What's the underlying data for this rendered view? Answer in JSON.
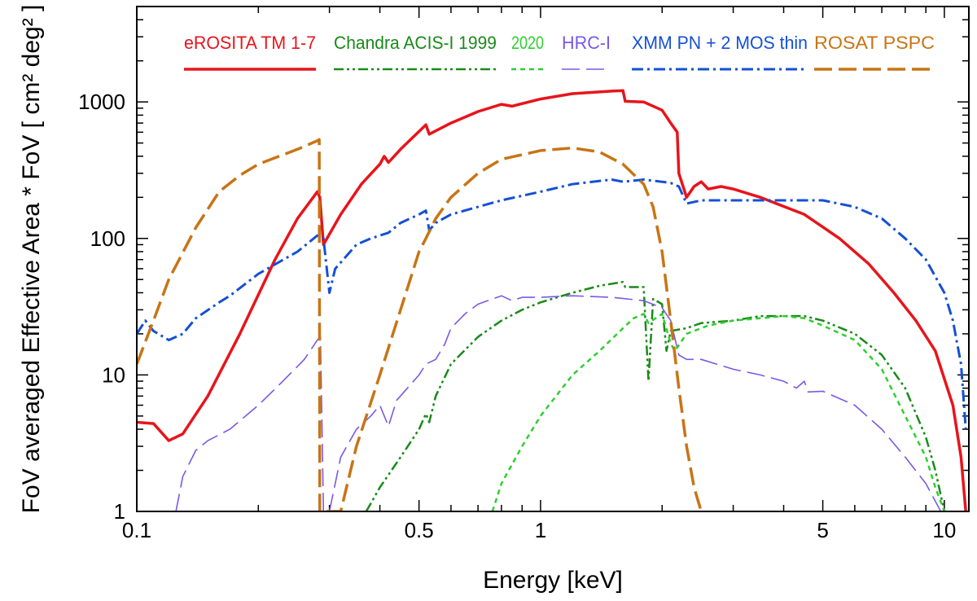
{
  "chart_data": {
    "type": "line",
    "title": "",
    "xlabel": "Energy  [keV]",
    "ylabel": "FoV averaged Effective Area * FoV  [ cm² deg² ]",
    "xscale": "log",
    "yscale": "log",
    "xlim": [
      0.1,
      11.5
    ],
    "ylim": [
      1,
      5000
    ],
    "x_ticks": [
      {
        "value": 0.1,
        "label": "0.1"
      },
      {
        "value": 0.5,
        "label": "0.5"
      },
      {
        "value": 1,
        "label": "1"
      },
      {
        "value": 5,
        "label": "5"
      },
      {
        "value": 10,
        "label": "10"
      }
    ],
    "y_ticks": [
      {
        "value": 1,
        "label": "1"
      },
      {
        "value": 10,
        "label": "10"
      },
      {
        "value": 100,
        "label": "100"
      },
      {
        "value": 1000,
        "label": "1000"
      }
    ],
    "legend_position": "top",
    "series": [
      {
        "name": "eROSITA TM 1-7",
        "color": "#e8141b",
        "dash": "solid",
        "width": 3.5,
        "points": [
          [
            0.1,
            4.5
          ],
          [
            0.11,
            4.4
          ],
          [
            0.12,
            3.3
          ],
          [
            0.13,
            3.7
          ],
          [
            0.15,
            7
          ],
          [
            0.18,
            20
          ],
          [
            0.22,
            70
          ],
          [
            0.25,
            140
          ],
          [
            0.28,
            220
          ],
          [
            0.284,
            200
          ],
          [
            0.29,
            90
          ],
          [
            0.32,
            150
          ],
          [
            0.36,
            250
          ],
          [
            0.4,
            350
          ],
          [
            0.41,
            400
          ],
          [
            0.42,
            360
          ],
          [
            0.45,
            450
          ],
          [
            0.52,
            680
          ],
          [
            0.53,
            580
          ],
          [
            0.6,
            700
          ],
          [
            0.7,
            850
          ],
          [
            0.8,
            960
          ],
          [
            0.85,
            930
          ],
          [
            1.0,
            1050
          ],
          [
            1.2,
            1150
          ],
          [
            1.5,
            1200
          ],
          [
            1.6,
            1210
          ],
          [
            1.62,
            1010
          ],
          [
            1.8,
            1000
          ],
          [
            2.0,
            870
          ],
          [
            2.1,
            700
          ],
          [
            2.18,
            600
          ],
          [
            2.2,
            300
          ],
          [
            2.3,
            200
          ],
          [
            2.4,
            240
          ],
          [
            2.5,
            260
          ],
          [
            2.6,
            230
          ],
          [
            2.8,
            240
          ],
          [
            3.0,
            230
          ],
          [
            3.5,
            200
          ],
          [
            4.5,
            150
          ],
          [
            5.5,
            100
          ],
          [
            6.5,
            65
          ],
          [
            7.5,
            40
          ],
          [
            8.5,
            25
          ],
          [
            9.5,
            15
          ],
          [
            10.5,
            6
          ],
          [
            11.0,
            2.5
          ],
          [
            11.3,
            1
          ]
        ]
      },
      {
        "name": "Chandra ACIS-I 1999",
        "color": "#1a8a1a",
        "dash": "dashdot",
        "width": 2.5,
        "points": [
          [
            0.37,
            1
          ],
          [
            0.4,
            1.5
          ],
          [
            0.45,
            2.5
          ],
          [
            0.5,
            4
          ],
          [
            0.52,
            5.2
          ],
          [
            0.53,
            4.5
          ],
          [
            0.55,
            7
          ],
          [
            0.6,
            12
          ],
          [
            0.7,
            19
          ],
          [
            0.8,
            25
          ],
          [
            0.9,
            30
          ],
          [
            1.0,
            34
          ],
          [
            1.2,
            40
          ],
          [
            1.4,
            45
          ],
          [
            1.6,
            48
          ],
          [
            1.62,
            44
          ],
          [
            1.8,
            44
          ],
          [
            1.85,
            9
          ],
          [
            1.9,
            36
          ],
          [
            2.0,
            33
          ],
          [
            2.05,
            15
          ],
          [
            2.1,
            21
          ],
          [
            2.3,
            22
          ],
          [
            2.5,
            24
          ],
          [
            3.0,
            25
          ],
          [
            3.5,
            27
          ],
          [
            4.0,
            27
          ],
          [
            4.5,
            27
          ],
          [
            5.0,
            25
          ],
          [
            6.0,
            20
          ],
          [
            7.0,
            14
          ],
          [
            8.0,
            8
          ],
          [
            9.0,
            3.5
          ],
          [
            9.5,
            2
          ],
          [
            10.0,
            1
          ]
        ]
      },
      {
        "name": "2020",
        "color": "#2ecf2e",
        "dash": "short-dash",
        "width": 2.5,
        "points": [
          [
            0.76,
            1
          ],
          [
            0.8,
            1.6
          ],
          [
            0.9,
            3
          ],
          [
            1.0,
            5
          ],
          [
            1.2,
            10
          ],
          [
            1.4,
            15
          ],
          [
            1.6,
            22
          ],
          [
            1.7,
            26
          ],
          [
            1.8,
            28
          ],
          [
            1.85,
            24
          ],
          [
            2.0,
            28
          ],
          [
            2.1,
            17
          ],
          [
            2.15,
            15
          ],
          [
            2.3,
            20
          ],
          [
            2.6,
            23
          ],
          [
            3.0,
            25
          ],
          [
            3.5,
            26
          ],
          [
            4.0,
            27
          ],
          [
            4.5,
            26
          ],
          [
            5.0,
            23
          ],
          [
            6.0,
            18
          ],
          [
            7.0,
            11
          ],
          [
            8.0,
            5
          ],
          [
            9.0,
            2.5
          ],
          [
            9.5,
            1.5
          ],
          [
            10.0,
            1
          ]
        ]
      },
      {
        "name": "HRC-I",
        "color": "#7a58e6",
        "dash": "long-dash",
        "width": 1.6,
        "points": [
          [
            0.125,
            1
          ],
          [
            0.13,
            1.8
          ],
          [
            0.14,
            2.8
          ],
          [
            0.15,
            3.3
          ],
          [
            0.17,
            4
          ],
          [
            0.2,
            6
          ],
          [
            0.23,
            9
          ],
          [
            0.26,
            13
          ],
          [
            0.28,
            18
          ],
          [
            0.285,
            19
          ],
          [
            0.29,
            1
          ],
          [
            0.3,
            1
          ],
          [
            0.32,
            2.5
          ],
          [
            0.35,
            4
          ],
          [
            0.38,
            5
          ],
          [
            0.4,
            6
          ],
          [
            0.42,
            4.2
          ],
          [
            0.44,
            6.5
          ],
          [
            0.5,
            10
          ],
          [
            0.52,
            12
          ],
          [
            0.55,
            13
          ],
          [
            0.58,
            17
          ],
          [
            0.6,
            22
          ],
          [
            0.65,
            28
          ],
          [
            0.7,
            33
          ],
          [
            0.8,
            38
          ],
          [
            0.85,
            35
          ],
          [
            0.9,
            37
          ],
          [
            1.0,
            37
          ],
          [
            1.2,
            38
          ],
          [
            1.5,
            37
          ],
          [
            1.8,
            35
          ],
          [
            2.0,
            31
          ],
          [
            2.1,
            25
          ],
          [
            2.2,
            14
          ],
          [
            2.3,
            13
          ],
          [
            2.5,
            13
          ],
          [
            3.0,
            11
          ],
          [
            3.5,
            10
          ],
          [
            4.0,
            9
          ],
          [
            4.3,
            8
          ],
          [
            4.5,
            9
          ],
          [
            4.6,
            7.5
          ],
          [
            5.0,
            7.6
          ],
          [
            6.0,
            6
          ],
          [
            7.0,
            4
          ],
          [
            8.0,
            2.5
          ],
          [
            9.0,
            1.6
          ],
          [
            9.8,
            1
          ]
        ]
      },
      {
        "name": "XMM PN + 2 MOS thin",
        "color": "#1450d6",
        "dash": "dashdot",
        "width": 3,
        "points": [
          [
            0.1,
            20
          ],
          [
            0.105,
            25
          ],
          [
            0.11,
            21
          ],
          [
            0.12,
            18
          ],
          [
            0.13,
            20
          ],
          [
            0.14,
            26
          ],
          [
            0.16,
            34
          ],
          [
            0.17,
            38
          ],
          [
            0.2,
            55
          ],
          [
            0.25,
            80
          ],
          [
            0.28,
            105
          ],
          [
            0.29,
            100
          ],
          [
            0.3,
            40
          ],
          [
            0.31,
            60
          ],
          [
            0.35,
            90
          ],
          [
            0.38,
            100
          ],
          [
            0.42,
            110
          ],
          [
            0.45,
            130
          ],
          [
            0.5,
            150
          ],
          [
            0.52,
            160
          ],
          [
            0.53,
            115
          ],
          [
            0.55,
            130
          ],
          [
            0.6,
            150
          ],
          [
            0.8,
            190
          ],
          [
            1.0,
            220
          ],
          [
            1.2,
            250
          ],
          [
            1.5,
            270
          ],
          [
            1.6,
            260
          ],
          [
            1.8,
            270
          ],
          [
            2.0,
            260
          ],
          [
            2.1,
            255
          ],
          [
            2.2,
            240
          ],
          [
            2.3,
            180
          ],
          [
            2.5,
            190
          ],
          [
            3.0,
            190
          ],
          [
            4.0,
            190
          ],
          [
            5.0,
            190
          ],
          [
            6.0,
            170
          ],
          [
            7.0,
            140
          ],
          [
            8.0,
            100
          ],
          [
            9.0,
            70
          ],
          [
            10.0,
            40
          ],
          [
            10.5,
            25
          ],
          [
            11.0,
            12
          ],
          [
            11.3,
            4
          ]
        ]
      },
      {
        "name": "ROSAT PSPC",
        "color": "#c87415",
        "dash": "long-dash",
        "width": 3.5,
        "points": [
          [
            0.1,
            12
          ],
          [
            0.11,
            25
          ],
          [
            0.12,
            50
          ],
          [
            0.14,
            120
          ],
          [
            0.16,
            220
          ],
          [
            0.18,
            290
          ],
          [
            0.2,
            350
          ],
          [
            0.25,
            450
          ],
          [
            0.28,
            520
          ],
          [
            0.283,
            530
          ],
          [
            0.284,
            1
          ],
          [
            0.32,
            1
          ],
          [
            0.35,
            3
          ],
          [
            0.4,
            10
          ],
          [
            0.45,
            30
          ],
          [
            0.5,
            80
          ],
          [
            0.52,
            100
          ],
          [
            0.55,
            140
          ],
          [
            0.6,
            200
          ],
          [
            0.7,
            300
          ],
          [
            0.8,
            380
          ],
          [
            1.0,
            440
          ],
          [
            1.2,
            460
          ],
          [
            1.4,
            430
          ],
          [
            1.6,
            350
          ],
          [
            1.8,
            250
          ],
          [
            1.9,
            170
          ],
          [
            2.0,
            80
          ],
          [
            2.1,
            25
          ],
          [
            2.2,
            8
          ],
          [
            2.3,
            3
          ],
          [
            2.4,
            1.5
          ],
          [
            2.5,
            1
          ]
        ]
      }
    ]
  }
}
